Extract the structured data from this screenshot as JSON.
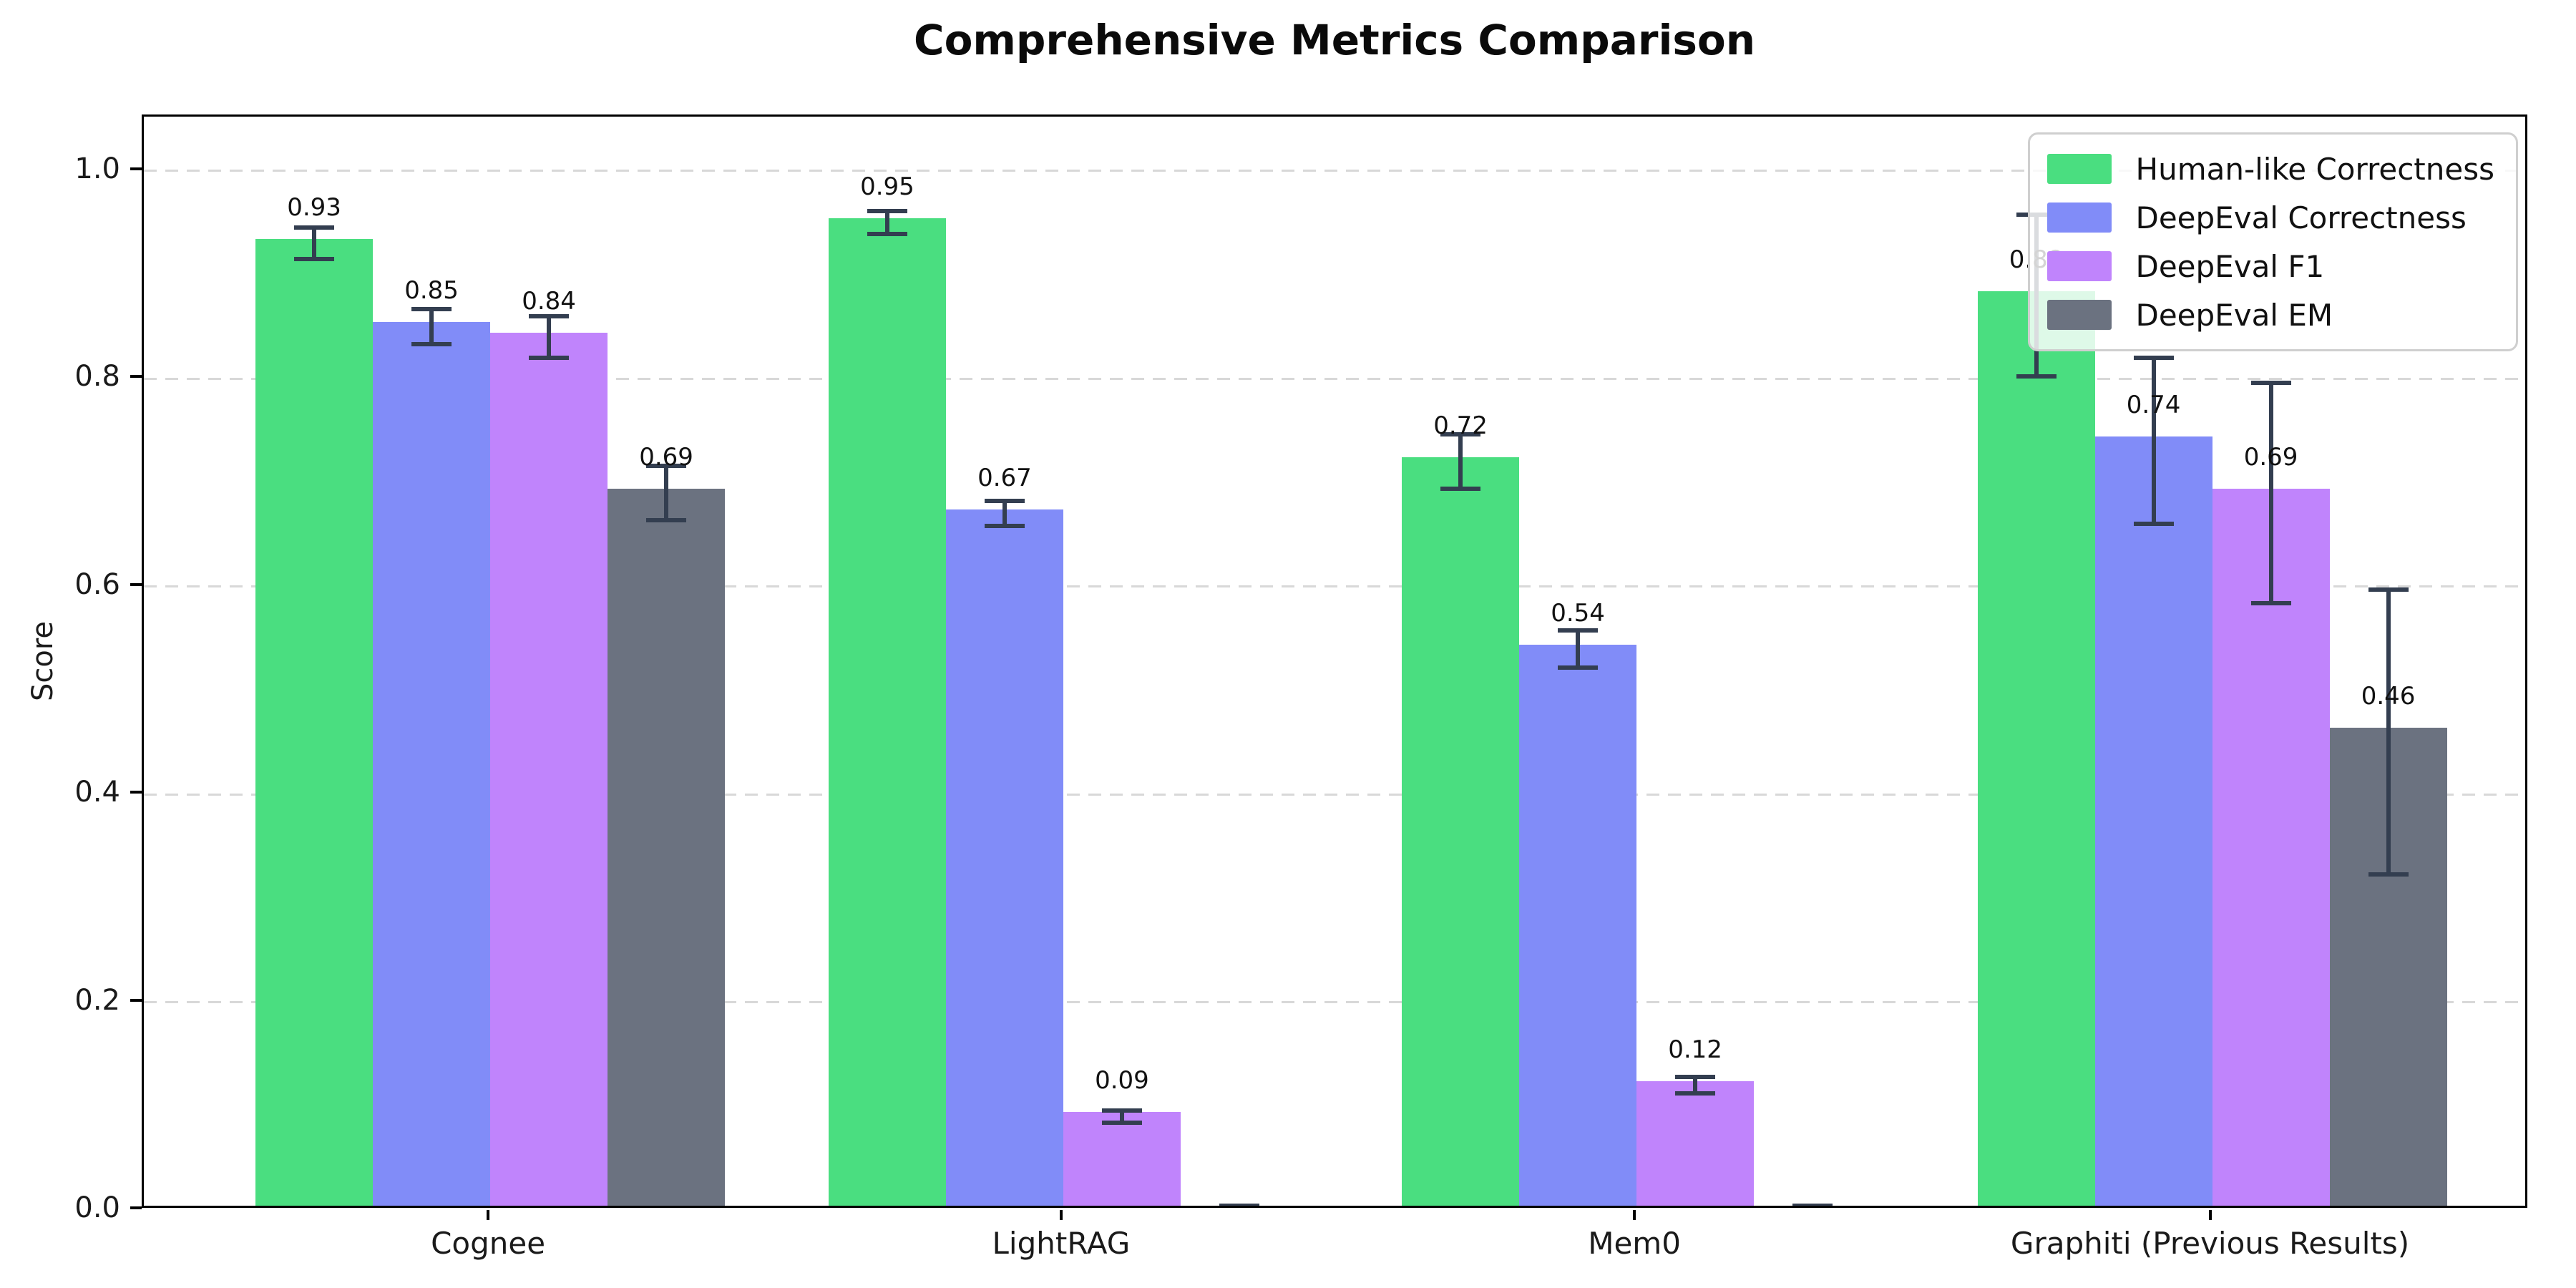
{
  "chart_data": {
    "type": "bar",
    "title": "Comprehensive Metrics Comparison",
    "ylabel": "Score",
    "categories": [
      "Cognee",
      "LightRAG",
      "Mem0",
      "Graphiti (Previous Results)"
    ],
    "series": [
      {
        "name": "Human-like Correctness",
        "color": "#4ade80",
        "values": [
          0.93,
          0.95,
          0.72,
          0.88
        ],
        "errors": [
          0.015,
          0.011,
          0.026,
          0.078
        ],
        "labels": [
          "0.93",
          "0.95",
          "0.72",
          "0.88"
        ]
      },
      {
        "name": "DeepEval Correctness",
        "color": "#818cf8",
        "values": [
          0.85,
          0.67,
          0.54,
          0.74
        ],
        "errors": [
          0.017,
          0.012,
          0.018,
          0.08
        ],
        "labels": [
          "0.85",
          "0.67",
          "0.54",
          "0.74"
        ]
      },
      {
        "name": "DeepEval F1",
        "color": "#c084fc",
        "values": [
          0.84,
          0.09,
          0.12,
          0.69
        ],
        "errors": [
          0.02,
          0.006,
          0.008,
          0.106
        ],
        "labels": [
          "0.84",
          "0.09",
          "0.12",
          "0.69"
        ]
      },
      {
        "name": "DeepEval EM",
        "color": "#6b7280",
        "values": [
          0.69,
          0.0,
          0.0,
          0.46
        ],
        "errors": [
          0.026,
          0.004,
          0.004,
          0.137
        ],
        "labels": [
          "0.69",
          "",
          "",
          "0.46"
        ]
      }
    ],
    "yticks": [
      "0.0",
      "0.2",
      "0.4",
      "0.6",
      "0.8",
      "1.0"
    ],
    "ylim": [
      0,
      1.052
    ],
    "grid": "horizontal-dashed",
    "legend_position": "upper-right",
    "error_bar_color": "#333e50"
  }
}
